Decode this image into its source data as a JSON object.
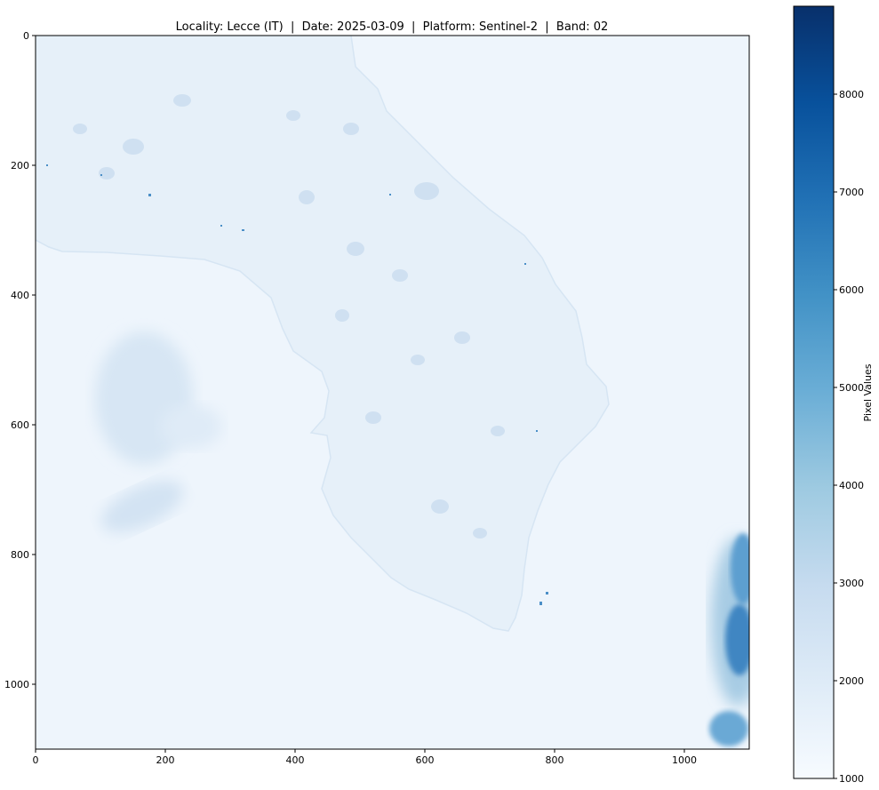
{
  "chart_data": {
    "type": "heatmap",
    "title": "Locality: Lecce (IT)  |  Date: 2025-03-09  |  Platform: Sentinel-2  |  Band: 02",
    "colormap": "Blues",
    "image_shape": [
      1100,
      1100
    ],
    "xlim": [
      0,
      1100
    ],
    "ylim": [
      1100,
      0
    ],
    "y_axis_inverted": true,
    "x_ticks": [
      0,
      200,
      400,
      600,
      800,
      1000
    ],
    "y_ticks": [
      0,
      200,
      400,
      600,
      800,
      1000
    ],
    "colorbar": {
      "label": "Pixel Values",
      "range": [
        1000,
        8900
      ],
      "ticks": [
        1000,
        2000,
        3000,
        4000,
        5000,
        6000,
        7000,
        8000
      ]
    },
    "background_sea_value": 1150,
    "land_value": 1600,
    "colors": {
      "low": "#f7fbff",
      "high": "#08306b",
      "scale": [
        "#f7fbff",
        "#deebf7",
        "#c6dbef",
        "#9ecae1",
        "#6baed6",
        "#4292c6",
        "#2171b5",
        "#08519c",
        "#08306b"
      ]
    }
  }
}
